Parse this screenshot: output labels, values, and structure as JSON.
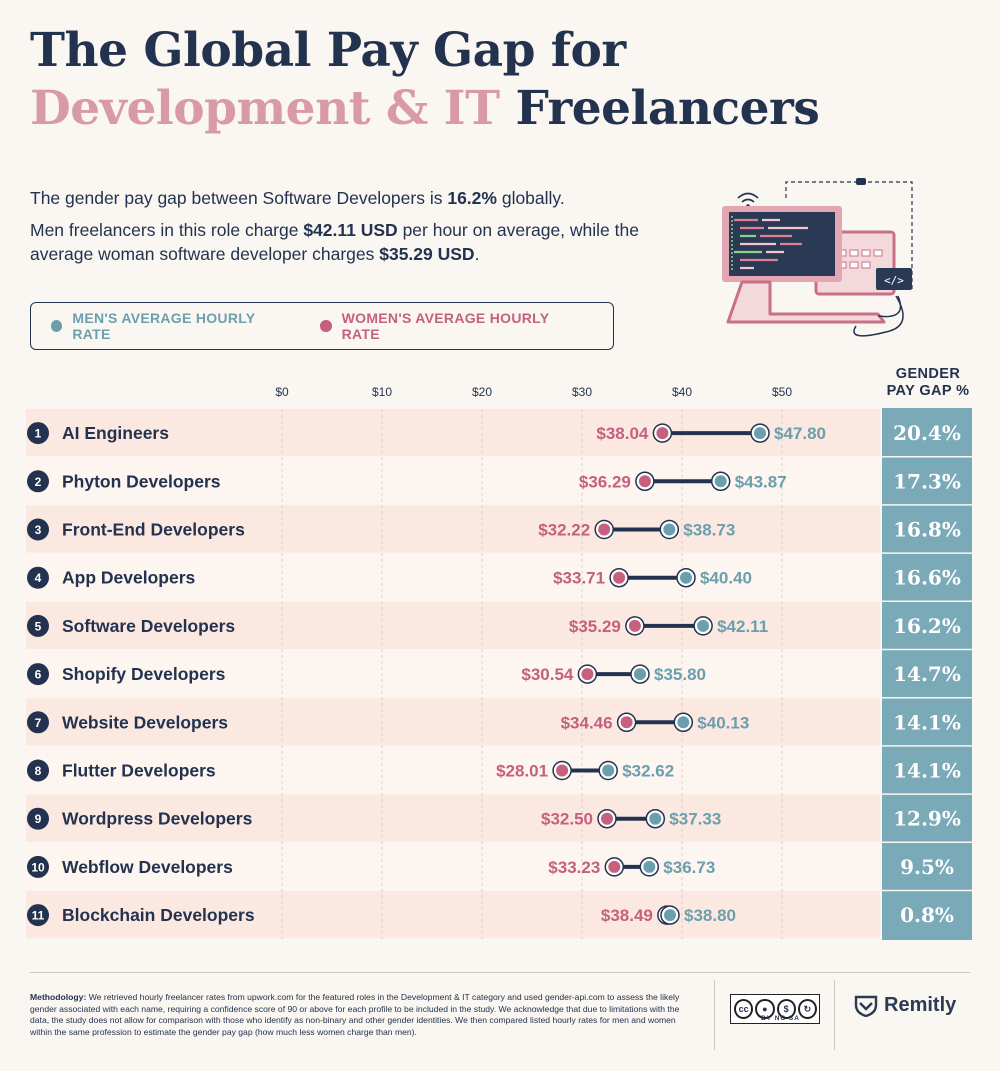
{
  "title": {
    "line1": "The Global Pay Gap for",
    "line2_highlight": "Development & IT",
    "line2_rest": " Freelancers"
  },
  "intro": {
    "p1_pre": "The gender pay gap between Software Developers is ",
    "p1_bold": "16.2%",
    "p1_post": " globally.",
    "p2_pre": "Men freelancers in this role charge ",
    "p2_bold1": "$42.11 USD",
    "p2_mid": " per hour on average, while the average woman software developer charges ",
    "p2_bold2": "$35.29 USD",
    "p2_post": "."
  },
  "legend": {
    "men": "MEN'S AVERAGE HOURLY RATE",
    "women": "WOMEN'S AVERAGE HOURLY RATE"
  },
  "gap_header": [
    "GENDER",
    "PAY GAP %"
  ],
  "colors": {
    "navy": "#23334f",
    "men": "#6c9fad",
    "women": "#c5607e",
    "pink_title": "#d89aa6",
    "row_alt": "#fbe9e1",
    "gap_column": "#7aa9b8"
  },
  "chart_data": {
    "type": "dumbbell",
    "x_ticks": [
      "$0",
      "$10",
      "$20",
      "$30",
      "$40",
      "$50"
    ],
    "xlim": [
      0,
      50
    ],
    "categories": [
      "AI Engineers",
      "Phyton Developers",
      "Front-End Developers",
      "App Developers",
      "Software Developers",
      "Shopify Developers",
      "Website Developers",
      "Flutter Developers",
      "Wordpress Developers",
      "Webflow Developers",
      "Blockchain Developers"
    ],
    "series": [
      {
        "name": "MEN'S AVERAGE HOURLY RATE",
        "values": [
          47.8,
          43.87,
          38.73,
          40.4,
          42.11,
          35.8,
          40.13,
          32.62,
          37.33,
          36.73,
          38.8
        ]
      },
      {
        "name": "WOMEN'S AVERAGE HOURLY RATE",
        "values": [
          38.04,
          36.29,
          32.22,
          33.71,
          35.29,
          30.54,
          34.46,
          28.01,
          32.5,
          33.23,
          38.49
        ]
      }
    ],
    "men_labels": [
      "$47.80",
      "$43.87",
      "$38.73",
      "$40.40",
      "$42.11",
      "$35.80",
      "$40.13",
      "$32.62",
      "$37.33",
      "$36.73",
      "$38.80"
    ],
    "women_labels": [
      "$38.04",
      "$36.29",
      "$32.22",
      "$33.71",
      "$35.29",
      "$30.54",
      "$34.46",
      "$28.01",
      "$32.50",
      "$33.23",
      "$38.49"
    ],
    "gap_labels": [
      "20.4%",
      "17.3%",
      "16.8%",
      "16.6%",
      "16.2%",
      "14.7%",
      "14.1%",
      "14.1%",
      "12.9%",
      "9.5%",
      "0.8%"
    ]
  },
  "methodology": {
    "label": "Methodology:",
    "text": " We retrieved hourly freelancer rates from upwork.com for the featured roles in the Development & IT category and used gender-api.com to assess the likely gender associated with each name, requiring a confidence score of 90 or above for each profile to be included in the study. We acknowledge that due to limitations with the data, the study does not allow for comparison with those who identify as non-binary and other gender identities. We then compared listed hourly rates for men and women within the same profession to estimate the gender pay gap (how much less women charge than men)."
  },
  "license": {
    "badge": "cc",
    "terms": "BY  NC  SA"
  },
  "brand": {
    "name": "Remitly"
  }
}
